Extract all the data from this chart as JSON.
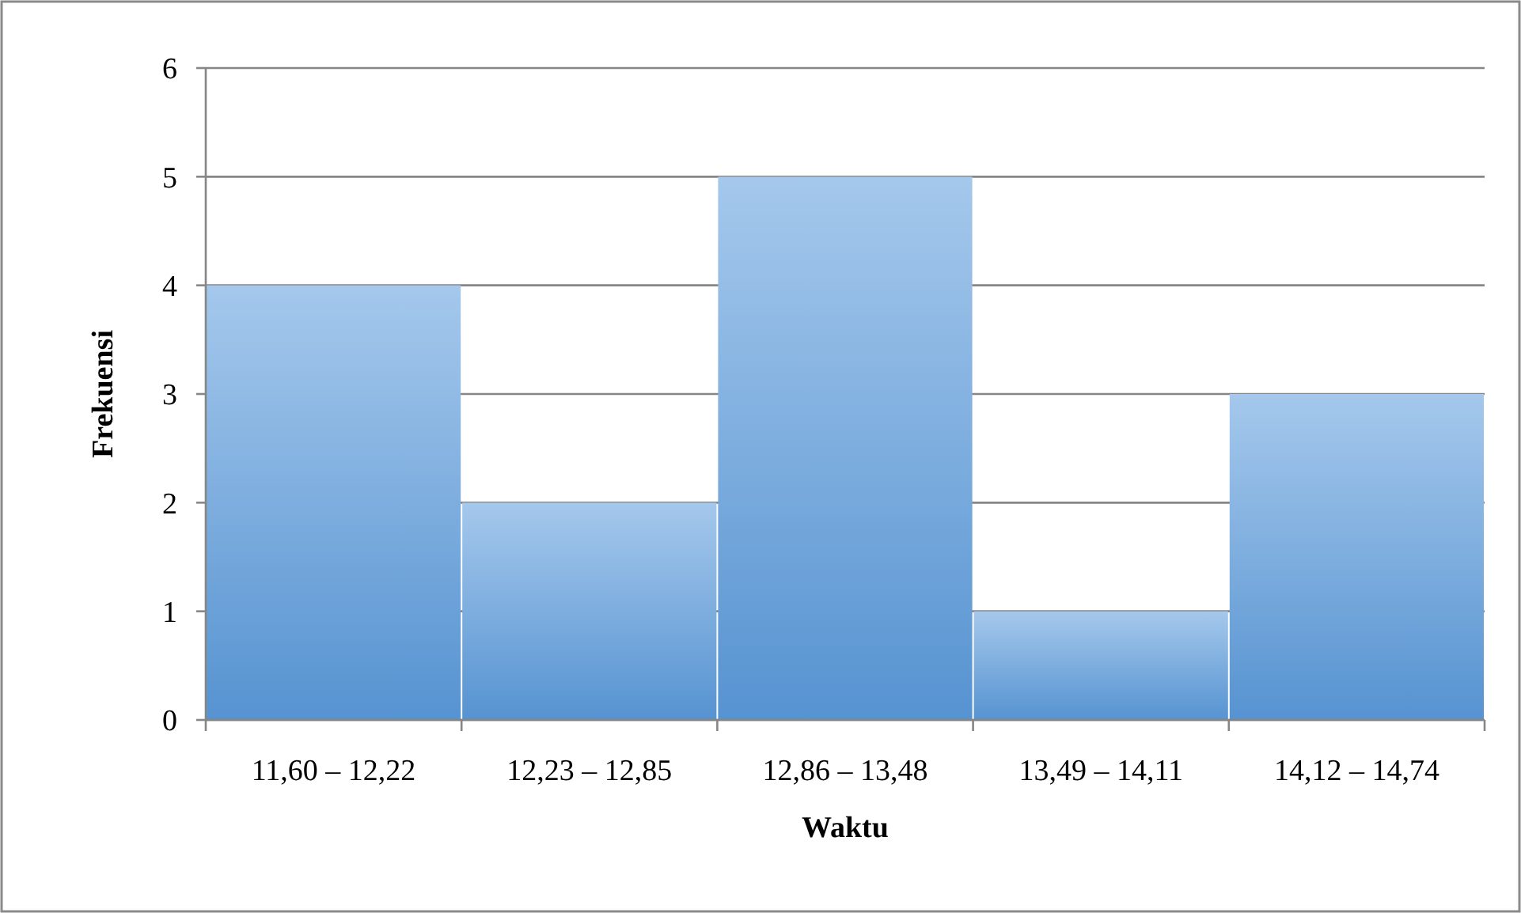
{
  "chart_data": {
    "type": "bar",
    "xlabel": "Waktu",
    "ylabel": "Frekuensi",
    "categories": [
      "11,60 – 12,22",
      "12,23 – 12,85",
      "12,86 – 13,48",
      "13,49 – 14,11",
      "14,12 – 14,74"
    ],
    "values": [
      4,
      2,
      5,
      1,
      3
    ],
    "color": "#5b9bdc",
    "ylim": [
      0,
      6
    ],
    "yticks": [
      0,
      1,
      2,
      3,
      4,
      5,
      6
    ],
    "grid": "y"
  }
}
